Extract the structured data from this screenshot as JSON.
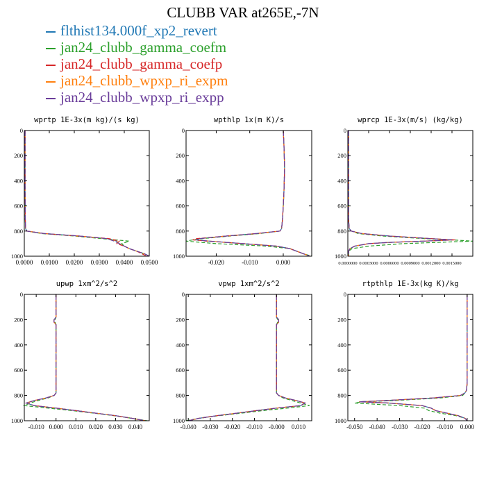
{
  "figure": {
    "title": "CLUBB VAR at265E,-7N",
    "legend": [
      {
        "name": "flthist134.000f_xp2_revert",
        "color": "#1f77b4"
      },
      {
        "name": "jan24_clubb_gamma_coefm",
        "color": "#2ca02c"
      },
      {
        "name": "jan24_clubb_gamma_coefp",
        "color": "#d62728"
      },
      {
        "name": "jan24_clubb_wpxp_ri_expm",
        "color": "#ff7f0e"
      },
      {
        "name": "jan24_clubb_wpxp_ri_expp",
        "color": "#6a3d9a"
      }
    ]
  },
  "chart_data": [
    {
      "type": "line",
      "title": "wprtp  1E-3x(m kg)/(s kg)",
      "xlim": [
        0,
        0.05
      ],
      "ylim": [
        1000,
        0
      ],
      "xticks": [
        "0.0000",
        "0.0100",
        "0.0200",
        "0.0300",
        "0.0400",
        "0.0500"
      ],
      "xtick_values": [
        0,
        0.01,
        0.02,
        0.03,
        0.04,
        0.05
      ],
      "yticks": [
        0,
        200,
        400,
        600,
        800,
        1000
      ],
      "y": [
        0,
        100,
        200,
        300,
        400,
        500,
        600,
        700,
        780,
        800,
        820,
        840,
        860,
        880,
        900,
        920,
        940,
        960,
        980,
        1000
      ],
      "series": [
        {
          "values": [
            0.0003,
            0.0003,
            0.0003,
            0.0003,
            0.0003,
            0.0003,
            0.0004,
            0.0004,
            0.0005,
            0.001,
            0.008,
            0.022,
            0.033,
            0.037,
            0.038,
            0.04,
            0.042,
            0.045,
            0.048,
            0.05
          ]
        },
        {
          "values": [
            0.0003,
            0.0003,
            0.0003,
            0.0003,
            0.0003,
            0.0003,
            0.0004,
            0.0004,
            0.0005,
            0.001,
            0.007,
            0.02,
            0.031,
            0.042,
            0.039,
            0.04,
            0.042,
            0.045,
            0.048,
            0.05
          ]
        },
        {
          "values": [
            0.0003,
            0.0003,
            0.0003,
            0.0003,
            0.0003,
            0.0003,
            0.0004,
            0.0004,
            0.0005,
            0.001,
            0.008,
            0.022,
            0.034,
            0.038,
            0.037,
            0.04,
            0.042,
            0.045,
            0.047,
            0.049
          ]
        },
        {
          "values": [
            0.0003,
            0.0003,
            0.0003,
            0.0003,
            0.0003,
            0.0003,
            0.0004,
            0.0004,
            0.0005,
            0.001,
            0.008,
            0.021,
            0.033,
            0.037,
            0.038,
            0.04,
            0.042,
            0.045,
            0.048,
            0.05
          ]
        },
        {
          "values": [
            0.0003,
            0.0003,
            0.0003,
            0.0003,
            0.0003,
            0.0003,
            0.0004,
            0.0004,
            0.0005,
            0.001,
            0.008,
            0.022,
            0.033,
            0.036,
            0.038,
            0.04,
            0.042,
            0.045,
            0.048,
            0.05
          ]
        }
      ]
    },
    {
      "type": "line",
      "title": "wpthlp  1x(m K)/s",
      "xlim": [
        -0.029,
        0.0085
      ],
      "ylim": [
        1000,
        0
      ],
      "xticks": [
        "-0.020",
        "-0.010",
        "0.000"
      ],
      "xtick_values": [
        -0.02,
        -0.01,
        0
      ],
      "yticks": [
        0,
        200,
        400,
        600,
        800,
        1000
      ],
      "y": [
        0,
        100,
        200,
        300,
        400,
        500,
        600,
        700,
        780,
        800,
        820,
        840,
        860,
        870,
        880,
        900,
        920,
        940,
        960,
        980,
        1000
      ],
      "series": [
        {
          "values": [
            0.0,
            0.0002,
            0.0003,
            0.0004,
            0.0003,
            0.0002,
            0.0,
            -0.0002,
            -0.0005,
            -0.001,
            -0.008,
            -0.017,
            -0.025,
            -0.026,
            -0.022,
            -0.012,
            -0.002,
            0.002,
            0.004,
            0.006,
            0.008
          ]
        },
        {
          "values": [
            0.0,
            0.0002,
            0.0003,
            0.0004,
            0.0003,
            0.0002,
            0.0,
            -0.0002,
            -0.0005,
            -0.001,
            -0.007,
            -0.016,
            -0.024,
            -0.027,
            -0.029,
            -0.02,
            -0.005,
            0.002,
            0.004,
            0.006,
            0.0085
          ]
        },
        {
          "values": [
            0.0,
            0.0002,
            0.0003,
            0.0004,
            0.0003,
            0.0002,
            0.0,
            -0.0002,
            -0.0005,
            -0.001,
            -0.008,
            -0.017,
            -0.026,
            -0.027,
            -0.023,
            -0.012,
            -0.002,
            0.002,
            0.004,
            0.006,
            0.008
          ]
        },
        {
          "values": [
            0.0,
            0.0002,
            0.0003,
            0.0004,
            0.0003,
            0.0002,
            0.0,
            -0.0002,
            -0.0005,
            -0.001,
            -0.008,
            -0.017,
            -0.025,
            -0.026,
            -0.022,
            -0.012,
            -0.002,
            0.002,
            0.004,
            0.006,
            0.008
          ]
        },
        {
          "values": [
            0.0,
            0.0002,
            0.0003,
            0.0004,
            0.0003,
            0.0002,
            0.0,
            -0.0002,
            -0.0005,
            -0.001,
            -0.008,
            -0.017,
            -0.025,
            -0.026,
            -0.022,
            -0.012,
            -0.002,
            0.002,
            0.004,
            0.006,
            0.008
          ]
        }
      ]
    },
    {
      "type": "line",
      "title": "wprcp  1E-3x(m/s) (kg/kg)",
      "xlim": [
        0,
        0.0018
      ],
      "ylim": [
        1000,
        0
      ],
      "xticks": [
        "0.0000000",
        "0.0003000",
        "0.0006000",
        "0.0009000",
        "0.0012000",
        "0.0015000"
      ],
      "xtick_values": [
        0,
        0.0003,
        0.0006,
        0.0009,
        0.0012,
        0.0015
      ],
      "yticks": [
        0,
        200,
        400,
        600,
        800,
        1000
      ],
      "y": [
        0,
        200,
        400,
        600,
        700,
        780,
        800,
        820,
        840,
        860,
        870,
        880,
        890,
        900,
        920,
        940,
        960,
        980,
        1000
      ],
      "series": [
        {
          "values": [
            1e-05,
            1e-05,
            1e-05,
            1e-05,
            1e-05,
            2e-05,
            5e-05,
            0.0002,
            0.0006,
            0.0012,
            0.0015,
            0.0011,
            0.0006,
            0.0003,
            0.0001,
            3e-05,
            1e-05,
            1e-05,
            1e-05
          ]
        },
        {
          "values": [
            1e-05,
            1e-05,
            1e-05,
            1e-05,
            1e-05,
            2e-05,
            5e-05,
            0.00015,
            0.0005,
            0.0011,
            0.0015,
            0.0018,
            0.0013,
            0.0008,
            0.0003,
            6e-05,
            1e-05,
            1e-05,
            1e-05
          ]
        },
        {
          "values": [
            1e-05,
            1e-05,
            1e-05,
            1e-05,
            1e-05,
            2e-05,
            5e-05,
            0.0002,
            0.0006,
            0.0012,
            0.00155,
            0.0011,
            0.0006,
            0.0003,
            0.0001,
            3e-05,
            1e-05,
            1e-05,
            1e-05
          ]
        },
        {
          "values": [
            1e-05,
            1e-05,
            1e-05,
            1e-05,
            1e-05,
            2e-05,
            5e-05,
            0.0002,
            0.0006,
            0.0012,
            0.0015,
            0.0011,
            0.0006,
            0.0003,
            0.0001,
            3e-05,
            1e-05,
            1e-05,
            1e-05
          ]
        },
        {
          "values": [
            1e-05,
            1e-05,
            1e-05,
            1e-05,
            1e-05,
            2e-05,
            5e-05,
            0.0002,
            0.0006,
            0.0012,
            0.0015,
            0.0011,
            0.0006,
            0.0003,
            0.0001,
            3e-05,
            1e-05,
            1e-05,
            1e-05
          ]
        }
      ]
    },
    {
      "type": "line",
      "title": "upwp   1xm^2/s^2",
      "xlim": [
        -0.016,
        0.047
      ],
      "ylim": [
        1000,
        0
      ],
      "xticks": [
        "-0.010",
        "0.000",
        "0.010",
        "0.020",
        "0.030",
        "0.040"
      ],
      "xtick_values": [
        -0.01,
        0,
        0.01,
        0.02,
        0.03,
        0.04
      ],
      "yticks": [
        0,
        200,
        400,
        600,
        800,
        1000
      ],
      "y": [
        0,
        100,
        180,
        200,
        220,
        240,
        260,
        280,
        300,
        400,
        500,
        600,
        700,
        780,
        800,
        820,
        840,
        860,
        880,
        900,
        920,
        940,
        960,
        980,
        1000
      ],
      "series": [
        {
          "values": [
            0.0,
            0.0,
            0.0,
            -0.001,
            -0.001,
            0.0,
            0.0,
            0.0,
            0.0,
            0.0,
            0.0,
            0.0,
            0.0,
            0.0,
            -0.001,
            -0.005,
            -0.011,
            -0.015,
            -0.011,
            0.0,
            0.01,
            0.02,
            0.03,
            0.038,
            0.045
          ]
        },
        {
          "values": [
            0.0,
            0.0,
            0.0,
            -0.0005,
            -0.0005,
            0.0,
            0.0,
            0.0,
            0.0,
            0.0,
            0.0,
            0.0,
            0.0,
            0.0,
            -0.001,
            -0.004,
            -0.009,
            -0.013,
            -0.016,
            -0.004,
            0.008,
            0.019,
            0.029,
            0.038,
            0.046
          ]
        },
        {
          "values": [
            0.0,
            0.0,
            0.0,
            -0.001,
            -0.001,
            0.0,
            0.0,
            0.0,
            0.0,
            0.0,
            0.0,
            0.0,
            0.0,
            0.0,
            -0.001,
            -0.005,
            -0.011,
            -0.015,
            -0.011,
            0.0,
            0.01,
            0.02,
            0.03,
            0.038,
            0.045
          ]
        },
        {
          "values": [
            0.0,
            0.0,
            0.0,
            -0.001,
            -0.001,
            0.0,
            0.0,
            0.0,
            0.0,
            0.0,
            0.0,
            0.0,
            0.0,
            0.0,
            -0.001,
            -0.005,
            -0.011,
            -0.015,
            -0.011,
            0.0,
            0.01,
            0.02,
            0.03,
            0.038,
            0.045
          ]
        },
        {
          "values": [
            0.0,
            0.0,
            0.0,
            -0.001,
            -0.001,
            0.0,
            0.0,
            0.0,
            0.0,
            0.0,
            0.0,
            0.0,
            0.0,
            0.0,
            -0.001,
            -0.005,
            -0.011,
            -0.015,
            -0.011,
            0.0,
            0.01,
            0.02,
            0.03,
            0.038,
            0.045
          ]
        }
      ]
    },
    {
      "type": "line",
      "title": "vpwp   1xm^2/s^2",
      "xlim": [
        -0.041,
        0.016
      ],
      "ylim": [
        1000,
        0
      ],
      "xticks": [
        "-0.040",
        "-0.030",
        "-0.020",
        "-0.010",
        "-0.000",
        "0.010"
      ],
      "xtick_values": [
        -0.04,
        -0.03,
        -0.02,
        -0.01,
        0,
        0.01
      ],
      "yticks": [
        0,
        200,
        400,
        600,
        800,
        1000
      ],
      "y": [
        0,
        100,
        180,
        200,
        220,
        240,
        260,
        280,
        300,
        400,
        500,
        600,
        700,
        780,
        800,
        820,
        840,
        860,
        880,
        900,
        920,
        940,
        960,
        980,
        1000
      ],
      "series": [
        {
          "values": [
            0.0,
            0.0,
            0.0,
            0.001,
            0.001,
            0.0,
            0.0,
            0.0,
            0.0,
            0.0,
            0.0,
            0.0,
            0.0,
            0.0,
            0.001,
            0.004,
            0.009,
            0.013,
            0.011,
            0.0,
            -0.009,
            -0.018,
            -0.027,
            -0.035,
            -0.04
          ]
        },
        {
          "values": [
            0.0,
            0.0,
            0.0,
            0.0005,
            0.0005,
            0.0,
            0.0,
            0.0,
            0.0,
            0.0,
            0.0,
            0.0,
            0.0,
            0.0,
            0.001,
            0.003,
            0.007,
            0.011,
            0.015,
            0.005,
            -0.006,
            -0.016,
            -0.026,
            -0.035,
            -0.041
          ]
        },
        {
          "values": [
            0.0,
            0.0,
            0.0,
            0.001,
            0.001,
            0.0,
            0.0,
            0.0,
            0.0,
            0.0,
            0.0,
            0.0,
            0.0,
            0.0,
            0.001,
            0.004,
            0.009,
            0.013,
            0.011,
            0.0,
            -0.009,
            -0.018,
            -0.027,
            -0.035,
            -0.04
          ]
        },
        {
          "values": [
            0.0,
            0.0,
            0.0,
            0.001,
            0.001,
            0.0,
            0.0,
            0.0,
            0.0,
            0.0,
            0.0,
            0.0,
            0.0,
            0.0,
            0.001,
            0.004,
            0.009,
            0.013,
            0.011,
            0.0,
            -0.009,
            -0.018,
            -0.027,
            -0.035,
            -0.04
          ]
        },
        {
          "values": [
            0.0,
            0.0,
            0.0,
            0.001,
            0.001,
            0.0,
            0.0,
            0.0,
            0.0,
            0.0,
            0.0,
            0.0,
            0.0,
            0.0,
            0.001,
            0.004,
            0.009,
            0.013,
            0.011,
            0.0,
            -0.009,
            -0.018,
            -0.027,
            -0.035,
            -0.04
          ]
        }
      ]
    },
    {
      "type": "line",
      "title": "rtpthlp   1E-3x(kg K)/kg",
      "xlim": [
        -0.053,
        0.0025
      ],
      "ylim": [
        1000,
        0
      ],
      "xticks": [
        "-0.050",
        "-0.040",
        "-0.030",
        "-0.020",
        "-0.010",
        "0.000"
      ],
      "xtick_values": [
        -0.05,
        -0.04,
        -0.03,
        -0.02,
        -0.01,
        0
      ],
      "yticks": [
        0,
        200,
        400,
        600,
        800,
        1000
      ],
      "y": [
        0,
        200,
        400,
        600,
        700,
        760,
        780,
        800,
        820,
        840,
        850,
        860,
        880,
        900,
        920,
        940,
        960,
        980,
        1000
      ],
      "series": [
        {
          "values": [
            0.0,
            0.0,
            0.0,
            0.0,
            0.0,
            -0.0003,
            -0.001,
            -0.003,
            -0.015,
            -0.036,
            -0.048,
            -0.035,
            -0.02,
            -0.016,
            -0.014,
            -0.009,
            -0.004,
            -0.001,
            0.0
          ]
        },
        {
          "values": [
            0.0,
            0.0,
            0.0,
            0.0,
            0.0,
            -0.0003,
            -0.001,
            -0.002,
            -0.012,
            -0.032,
            -0.046,
            -0.05,
            -0.03,
            -0.019,
            -0.017,
            -0.012,
            -0.005,
            -0.001,
            0.0
          ]
        },
        {
          "values": [
            0.0,
            0.0,
            0.0,
            0.0,
            0.0,
            -0.0003,
            -0.001,
            -0.003,
            -0.015,
            -0.036,
            -0.048,
            -0.035,
            -0.02,
            -0.016,
            -0.014,
            -0.009,
            -0.004,
            -0.001,
            0.0
          ]
        },
        {
          "values": [
            0.0,
            0.0,
            0.0,
            0.0,
            0.0,
            -0.0003,
            -0.001,
            -0.003,
            -0.015,
            -0.036,
            -0.048,
            -0.035,
            -0.02,
            -0.016,
            -0.014,
            -0.009,
            -0.004,
            -0.001,
            0.0
          ]
        },
        {
          "values": [
            0.0,
            0.0,
            0.0,
            0.0,
            0.0,
            -0.0003,
            -0.001,
            -0.003,
            -0.015,
            -0.036,
            -0.048,
            -0.035,
            -0.02,
            -0.016,
            -0.014,
            -0.009,
            -0.004,
            -0.001,
            0.0
          ]
        }
      ]
    }
  ]
}
